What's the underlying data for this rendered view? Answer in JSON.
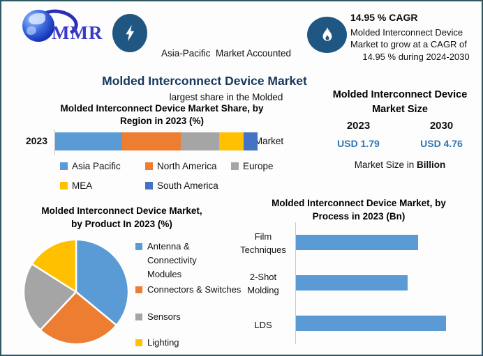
{
  "page": {
    "title": "Molded Interconnect Device Market",
    "border_color": "#2E5964",
    "title_color": "#17365D"
  },
  "header": {
    "logo": {
      "text": "MMR"
    },
    "badge_color": "#1F5782",
    "highlight": {
      "lines": [
        "Asia-Pacific  Market Accounted",
        "largest share in the Molded",
        "Interconnect Device Market"
      ]
    },
    "cagr": {
      "title": "14.95 % CAGR",
      "lines": [
        "Molded Interconnect Device",
        "Market to grow at a CAGR of",
        "14.95 % during 2024-2030"
      ]
    }
  },
  "region_chart": {
    "title_lines": [
      "Molded Interconnect Device Market Share, by",
      "Region in 2023 (%)"
    ],
    "category_label": "2023"
  },
  "market_size": {
    "title_lines": [
      "Molded Interconnect Device",
      "Market Size"
    ],
    "year_left": "2023",
    "year_right": "2030",
    "value_left": "USD 1.79",
    "value_right": "USD 4.76",
    "value_color": "#2E75B6",
    "note_prefix": "Market Size in ",
    "note_bold": "Billion"
  },
  "product_chart": {
    "title_lines": [
      "Molded Interconnect Device Market,",
      "by Product In 2023 (%)"
    ],
    "legend_lines": [
      [
        "Antenna & Connectivity",
        "Modules"
      ],
      [
        "Connectors & Switches",
        ""
      ],
      [
        "Sensors",
        ""
      ],
      [
        "Lighting",
        ""
      ]
    ]
  },
  "process_chart": {
    "title_lines": [
      "Molded Interconnect Device Market, by",
      "Process in 2023 (Bn)"
    ],
    "category_lines": [
      [
        "Film",
        "Techniques"
      ],
      [
        "2-Shot",
        "Molding"
      ],
      [
        "LDS",
        ""
      ]
    ]
  },
  "chart_data": [
    {
      "type": "bar",
      "variant": "stacked-horizontal",
      "title": "Molded Interconnect Device Market Share, by Region in 2023 (%)",
      "categories": [
        "2023"
      ],
      "series": [
        {
          "name": "Asia Pacific",
          "values": [
            33
          ],
          "color": "#5B9BD5"
        },
        {
          "name": "North America",
          "values": [
            29
          ],
          "color": "#ED7D31"
        },
        {
          "name": "Europe",
          "values": [
            19
          ],
          "color": "#A5A5A5"
        },
        {
          "name": "MEA",
          "values": [
            12
          ],
          "color": "#FFC000"
        },
        {
          "name": "South America",
          "values": [
            7
          ],
          "color": "#4472C4"
        }
      ],
      "unit": "%",
      "xlim": [
        0,
        100
      ],
      "legend_position": "bottom"
    },
    {
      "type": "pie",
      "title": "Molded Interconnect Device Market, by Product In 2023 (%)",
      "labels": [
        "Antenna & Connectivity Modules",
        "Connectors & Switches",
        "Sensors",
        "Lighting"
      ],
      "values": [
        36,
        26,
        22,
        16
      ],
      "colors": [
        "#5B9BD5",
        "#ED7D31",
        "#A5A5A5",
        "#FFC000"
      ],
      "unit": "%",
      "start_angle_deg": 0,
      "legend_position": "right"
    },
    {
      "type": "bar",
      "variant": "horizontal",
      "title": "Molded Interconnect Device Market, by Process in 2023 (Bn)",
      "categories": [
        "Film Techniques",
        "2-Shot Molding",
        "LDS"
      ],
      "values": [
        0.57,
        0.52,
        0.7
      ],
      "bar_color": "#5B9BD5",
      "unit": "Bn",
      "xlim": [
        0,
        0.78
      ],
      "legend_position": "none"
    }
  ]
}
